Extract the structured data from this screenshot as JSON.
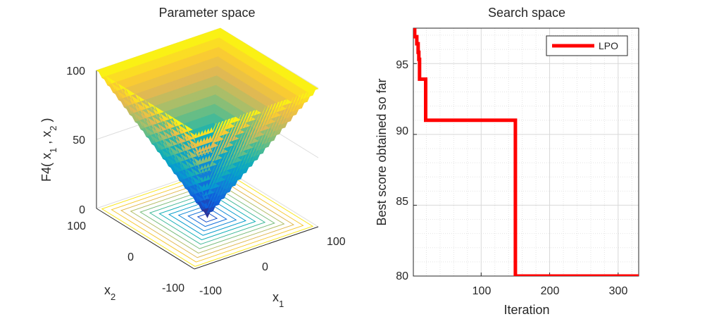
{
  "chart_data": [
    {
      "type": "surface",
      "title": "Parameter space",
      "function_label": "F4",
      "zlabel_parts": {
        "prefix": "F4( x",
        "sub1": "1",
        "mid": " , x",
        "sub2": "2",
        "suffix": " )"
      },
      "xlabel": {
        "base": "x",
        "sub": "1"
      },
      "ylabel": {
        "base": "x",
        "sub": "2"
      },
      "x_ticks": [
        "-100",
        "0",
        "100"
      ],
      "y_ticks": [
        "-100",
        "0",
        "100"
      ],
      "z_ticks": [
        "0",
        "50",
        "100"
      ],
      "xlim": [
        -100,
        100
      ],
      "ylim": [
        -100,
        100
      ],
      "zlim": [
        0,
        100
      ],
      "function": "max(|x1|, |x2|)",
      "contours": true,
      "colormap": "parula"
    },
    {
      "type": "line",
      "title": "Search space",
      "xlabel": "Iteration",
      "ylabel": "Best score obtained so far",
      "x_ticks": [
        "100",
        "200",
        "300"
      ],
      "y_ticks": [
        "80",
        "85",
        "90",
        "95"
      ],
      "xlim": [
        1,
        330
      ],
      "ylim": [
        80,
        97.5
      ],
      "grid": true,
      "minor_grid": true,
      "legend_position": "top-right",
      "series": [
        {
          "name": "LPO",
          "color": "#ff0000",
          "x": [
            1,
            3,
            3,
            6,
            6,
            8,
            8,
            9,
            9,
            10,
            10,
            11,
            11,
            16,
            16,
            19,
            19,
            150,
            150,
            330
          ],
          "y": [
            97.5,
            97.5,
            96.9,
            96.9,
            96.4,
            96.4,
            95.8,
            95.8,
            95.3,
            95.3,
            93.9,
            93.9,
            93.9,
            93.9,
            93.9,
            93.9,
            91.0,
            91.0,
            80.0,
            80.0
          ]
        }
      ]
    }
  ]
}
